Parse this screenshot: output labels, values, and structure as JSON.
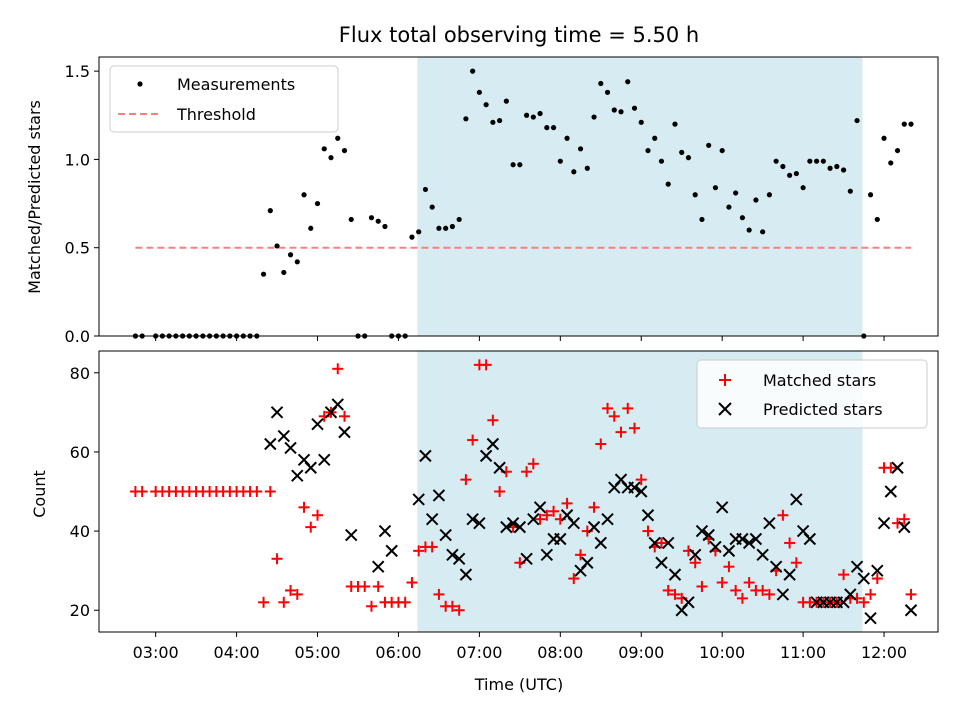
{
  "chart_data": [
    {
      "type": "scatter",
      "title": "Flux total observing time = 5.50 h",
      "xlabel": "",
      "ylabel": "Matched/Predicted stars",
      "ylim": [
        0,
        1.58
      ],
      "yticks": [
        0.0,
        0.5,
        1.0,
        1.5
      ],
      "ytick_labels": [
        "0.0",
        "0.5",
        "1.0",
        "1.5"
      ],
      "legend_position": "top-left",
      "shaded_interval": [
        "06:14",
        "11:44"
      ],
      "shade_color": "#add8e6",
      "series": [
        {
          "name": "Measurements",
          "color": "#000000",
          "marker": "dot",
          "x": [
            "02:45",
            "02:50",
            "03:00",
            "03:05",
            "03:10",
            "03:15",
            "03:20",
            "03:25",
            "03:30",
            "03:35",
            "03:40",
            "03:45",
            "03:50",
            "03:55",
            "04:00",
            "04:05",
            "04:10",
            "04:15",
            "04:20",
            "04:25",
            "04:30",
            "04:35",
            "04:40",
            "04:45",
            "04:50",
            "04:55",
            "05:00",
            "05:05",
            "05:10",
            "05:15",
            "05:20",
            "05:25",
            "05:30",
            "05:35",
            "05:40",
            "05:45",
            "05:50",
            "05:55",
            "06:00",
            "06:05",
            "06:10",
            "06:15",
            "06:20",
            "06:25",
            "06:30",
            "06:35",
            "06:40",
            "06:45",
            "06:50",
            "06:55",
            "07:00",
            "07:05",
            "07:10",
            "07:15",
            "07:20",
            "07:25",
            "07:30",
            "07:35",
            "07:40",
            "07:45",
            "07:50",
            "07:55",
            "08:00",
            "08:05",
            "08:10",
            "08:15",
            "08:20",
            "08:25",
            "08:30",
            "08:35",
            "08:40",
            "08:45",
            "08:50",
            "08:55",
            "09:00",
            "09:05",
            "09:10",
            "09:15",
            "09:20",
            "09:25",
            "09:30",
            "09:35",
            "09:40",
            "09:45",
            "09:50",
            "09:55",
            "10:00",
            "10:05",
            "10:10",
            "10:15",
            "10:20",
            "10:25",
            "10:30",
            "10:35",
            "10:40",
            "10:45",
            "10:50",
            "10:55",
            "11:00",
            "11:05",
            "11:10",
            "11:15",
            "11:20",
            "11:25",
            "11:30",
            "11:35",
            "11:40",
            "11:45",
            "11:50",
            "11:55",
            "12:00",
            "12:05",
            "12:10",
            "12:15",
            "12:20"
          ],
          "values": [
            0,
            0,
            0,
            0,
            0,
            0,
            0,
            0,
            0,
            0,
            0,
            0,
            0,
            0,
            0,
            0,
            0,
            0,
            0.35,
            0.71,
            0.51,
            0.36,
            0.46,
            0.42,
            0.8,
            0.61,
            0.75,
            1.06,
            1.01,
            1.12,
            1.05,
            0.66,
            0,
            0,
            0.67,
            0.65,
            0.62,
            0,
            0,
            0,
            0.56,
            0.59,
            0.83,
            0.73,
            0.61,
            0.61,
            0.62,
            0.66,
            1.23,
            1.5,
            1.38,
            1.31,
            1.21,
            1.22,
            1.33,
            0.97,
            0.97,
            1.25,
            1.24,
            1.26,
            1.18,
            1.18,
            0.99,
            1.12,
            0.93,
            1.06,
            0.95,
            1.24,
            1.43,
            1.38,
            1.28,
            1.27,
            1.44,
            1.29,
            1.21,
            1.05,
            1.12,
            0.99,
            0.86,
            1.2,
            1.04,
            1.01,
            0.8,
            0.66,
            1.08,
            0.84,
            1.05,
            0.73,
            0.81,
            0.67,
            0.6,
            0.77,
            0.59,
            0.8,
            0.99,
            0.96,
            0.91,
            0.92,
            0.84,
            0.99,
            0.99,
            0.99,
            0.95,
            0.96,
            0.94,
            0.82,
            1.22,
            0,
            0.8,
            0.66,
            1.12,
            0.98,
            1.05,
            1.2,
            1.2
          ]
        },
        {
          "name": "Threshold",
          "color": "#ff7f7f",
          "style": "dashed",
          "x": [
            "02:45",
            "12:20"
          ],
          "values": [
            0.5,
            0.5
          ]
        }
      ]
    },
    {
      "type": "scatter",
      "title": "",
      "xlabel": "Time (UTC)",
      "ylabel": "Count",
      "ylim": [
        14.5,
        85.5
      ],
      "yticks": [
        20,
        40,
        60,
        80
      ],
      "ytick_labels": [
        "20",
        "40",
        "60",
        "80"
      ],
      "xtick_labels": [
        "03:00",
        "04:00",
        "05:00",
        "06:00",
        "07:00",
        "08:00",
        "09:00",
        "10:00",
        "11:00",
        "12:00"
      ],
      "legend_position": "top-right",
      "shaded_interval": [
        "06:14",
        "11:44"
      ],
      "shade_color": "#add8e6",
      "series": [
        {
          "name": "Matched stars",
          "color": "#ff0000",
          "marker": "plus",
          "x": [
            "02:45",
            "02:50",
            "03:00",
            "03:05",
            "03:10",
            "03:15",
            "03:20",
            "03:25",
            "03:30",
            "03:35",
            "03:40",
            "03:45",
            "03:50",
            "03:55",
            "04:00",
            "04:05",
            "04:10",
            "04:15",
            "04:20",
            "04:25",
            "04:30",
            "04:35",
            "04:40",
            "04:45",
            "04:50",
            "04:55",
            "05:00",
            "05:05",
            "05:10",
            "05:15",
            "05:20",
            "05:25",
            "05:30",
            "05:35",
            "05:40",
            "05:45",
            "05:50",
            "05:55",
            "06:00",
            "06:05",
            "06:10",
            "06:15",
            "06:20",
            "06:25",
            "06:30",
            "06:35",
            "06:40",
            "06:45",
            "06:50",
            "06:55",
            "07:00",
            "07:05",
            "07:10",
            "07:15",
            "07:20",
            "07:25",
            "07:30",
            "07:35",
            "07:40",
            "07:45",
            "07:50",
            "07:55",
            "08:00",
            "08:05",
            "08:10",
            "08:15",
            "08:20",
            "08:25",
            "08:30",
            "08:35",
            "08:40",
            "08:45",
            "08:50",
            "08:55",
            "09:00",
            "09:05",
            "09:10",
            "09:15",
            "09:20",
            "09:25",
            "09:30",
            "09:35",
            "09:40",
            "09:45",
            "09:50",
            "09:55",
            "10:00",
            "10:05",
            "10:10",
            "10:15",
            "10:20",
            "10:25",
            "10:30",
            "10:35",
            "10:40",
            "10:45",
            "10:50",
            "10:55",
            "11:00",
            "11:05",
            "11:10",
            "11:15",
            "11:20",
            "11:25",
            "11:30",
            "11:35",
            "11:40",
            "11:45",
            "11:50",
            "11:55",
            "12:00",
            "12:05",
            "12:10",
            "12:15",
            "12:20"
          ],
          "values": [
            50,
            50,
            50,
            50,
            50,
            50,
            50,
            50,
            50,
            50,
            50,
            50,
            50,
            50,
            50,
            50,
            50,
            50,
            22,
            50,
            33,
            22,
            25,
            24,
            46,
            41,
            44,
            69,
            70,
            81,
            69,
            26,
            26,
            26,
            21,
            26,
            22,
            22,
            22,
            22,
            27,
            35,
            36,
            36,
            24,
            21,
            21,
            20,
            53,
            63,
            82,
            82,
            68,
            50,
            55,
            41,
            32,
            55,
            57,
            43,
            44,
            45,
            43,
            47,
            28,
            34,
            40,
            46,
            62,
            71,
            69,
            65,
            71,
            66,
            53,
            40,
            36,
            37,
            25,
            24,
            23,
            35,
            32,
            26,
            38,
            35,
            27,
            31,
            25,
            23,
            27,
            25,
            25,
            24,
            30,
            44,
            37,
            32,
            22,
            22,
            22,
            22,
            22,
            22,
            29,
            23,
            23,
            22,
            24,
            28,
            56,
            56,
            42,
            43,
            24
          ]
        },
        {
          "name": "Predicted stars",
          "color": "#000000",
          "marker": "x",
          "x": [
            "04:25",
            "04:30",
            "04:35",
            "04:40",
            "04:45",
            "04:50",
            "04:55",
            "05:00",
            "05:05",
            "05:10",
            "05:15",
            "05:20",
            "05:25",
            "05:45",
            "05:50",
            "05:55",
            "06:15",
            "06:20",
            "06:25",
            "06:30",
            "06:35",
            "06:40",
            "06:45",
            "06:50",
            "06:55",
            "07:00",
            "07:05",
            "07:10",
            "07:15",
            "07:20",
            "07:25",
            "07:30",
            "07:35",
            "07:40",
            "07:45",
            "07:50",
            "07:55",
            "08:00",
            "08:05",
            "08:10",
            "08:15",
            "08:20",
            "08:25",
            "08:30",
            "08:35",
            "08:40",
            "08:45",
            "08:50",
            "08:55",
            "09:00",
            "09:05",
            "09:10",
            "09:15",
            "09:20",
            "09:25",
            "09:30",
            "09:35",
            "09:40",
            "09:45",
            "09:50",
            "09:55",
            "10:00",
            "10:05",
            "10:10",
            "10:15",
            "10:20",
            "10:25",
            "10:30",
            "10:35",
            "10:40",
            "10:45",
            "10:50",
            "10:55",
            "11:00",
            "11:05",
            "11:10",
            "11:15",
            "11:20",
            "11:25",
            "11:30",
            "11:35",
            "11:40",
            "11:45",
            "11:50",
            "11:55",
            "12:00",
            "12:05",
            "12:10",
            "12:15",
            "12:20"
          ],
          "values": [
            62,
            70,
            64,
            61,
            54,
            58,
            56,
            67,
            58,
            70,
            72,
            65,
            39,
            31,
            40,
            35,
            48,
            59,
            43,
            49,
            39,
            34,
            33,
            29,
            43,
            42,
            59,
            62,
            56,
            41,
            42,
            41,
            33,
            43,
            46,
            34,
            38,
            38,
            44,
            42,
            30,
            32,
            41,
            37,
            43,
            51,
            53,
            51,
            51,
            50,
            44,
            37,
            32,
            37,
            29,
            20,
            22,
            34,
            40,
            39,
            36,
            46,
            35,
            38,
            38,
            37,
            38,
            34,
            42,
            31,
            24,
            29,
            48,
            40,
            38,
            22,
            22,
            22,
            22,
            22,
            24,
            31,
            28,
            18,
            30,
            42,
            50,
            56,
            41,
            20
          ]
        }
      ]
    }
  ]
}
